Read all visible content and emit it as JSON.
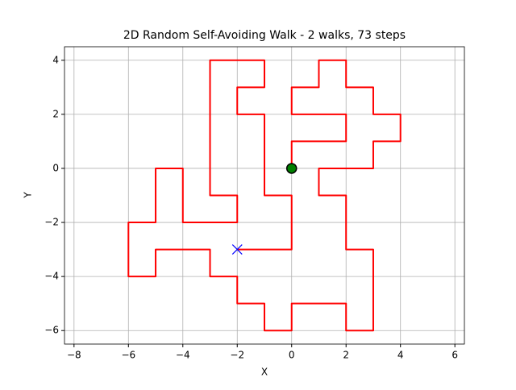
{
  "chart_data": {
    "type": "line",
    "title": "2D Random Self-Avoiding Walk - 2 walks, 73 steps",
    "xlabel": "X",
    "ylabel": "Y",
    "xlim": [
      -8.35,
      6.35
    ],
    "ylim": [
      -6.5,
      4.5
    ],
    "xticks": [
      {
        "value": -8,
        "label": "−8"
      },
      {
        "value": -6,
        "label": "−6"
      },
      {
        "value": -4,
        "label": "−4"
      },
      {
        "value": -2,
        "label": "−2"
      },
      0,
      2,
      4,
      6
    ],
    "yticks": [
      {
        "value": -6,
        "label": "−6"
      },
      {
        "value": -4,
        "label": "−4"
      },
      {
        "value": -2,
        "label": "−2"
      },
      0,
      2,
      4
    ],
    "grid": true,
    "series": [
      {
        "color": "#ff0000",
        "x": [
          0,
          0,
          2,
          2,
          0,
          0,
          1,
          1,
          2,
          2,
          3,
          3,
          4,
          4,
          3,
          3,
          1,
          1,
          2,
          2,
          3,
          3,
          2,
          2,
          0,
          0,
          -1,
          -1,
          -2,
          -2,
          -3,
          -3,
          -5,
          -5,
          -6,
          -6,
          -5,
          -5,
          -4,
          -4,
          -2,
          -2,
          -3,
          -3,
          -1,
          -1,
          -2,
          -2,
          -1,
          -1,
          0,
          0,
          -2
        ],
        "values": [
          0,
          1,
          1,
          2,
          2,
          3,
          3,
          4,
          4,
          3,
          3,
          2,
          2,
          1,
          1,
          0,
          0,
          -1,
          -1,
          -3,
          -3,
          -6,
          -6,
          -5,
          -5,
          -6,
          -6,
          -5,
          -5,
          -4,
          -4,
          -3,
          -3,
          -4,
          -4,
          -2,
          -2,
          0,
          0,
          -2,
          -2,
          -1,
          -1,
          4,
          4,
          3,
          3,
          2,
          2,
          -1,
          -1,
          -3,
          -3
        ]
      }
    ],
    "markers": [
      {
        "x": 0,
        "y": 0,
        "color": "#008000",
        "shape": "circle"
      },
      {
        "x": -2,
        "y": -3,
        "color": "#0000ff",
        "shape": "x"
      }
    ]
  }
}
